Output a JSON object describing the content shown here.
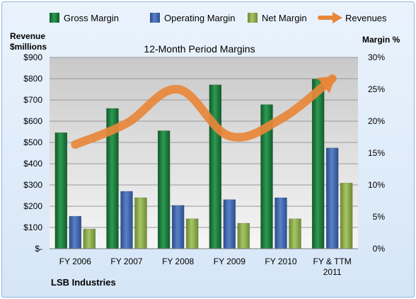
{
  "chart_data": {
    "type": "bar",
    "title": "12-Month Period Margins",
    "company": "LSB Industries",
    "left_axis": {
      "label_line1": "Revenue",
      "label_line2": "$millions",
      "ylim": [
        0,
        900
      ],
      "ticks": [
        "$-",
        "$100",
        "$200",
        "$300",
        "$400",
        "$500",
        "$600",
        "$700",
        "$800",
        "$900"
      ]
    },
    "right_axis": {
      "label": "Margin %",
      "ylim": [
        0,
        30
      ],
      "ticks": [
        "0%",
        "5%",
        "10%",
        "15%",
        "20%",
        "25%",
        "30%"
      ]
    },
    "categories": [
      {
        "line1": "FY 2006",
        "line2": ""
      },
      {
        "line1": "FY 2007",
        "line2": ""
      },
      {
        "line1": "FY 2008",
        "line2": ""
      },
      {
        "line1": "FY 2009",
        "line2": ""
      },
      {
        "line1": "FY 2010",
        "line2": ""
      },
      {
        "line1": "FY & TTM",
        "line2": "2011"
      }
    ],
    "series": [
      {
        "name": "Gross Margin",
        "axis": "right",
        "color": "#1f7a3c",
        "values": [
          18.2,
          22.0,
          18.5,
          25.7,
          22.6,
          26.6
        ]
      },
      {
        "name": "Operating Margin",
        "axis": "right",
        "color": "#3d64a8",
        "values": [
          5.1,
          9.0,
          6.8,
          7.7,
          8.0,
          15.8
        ]
      },
      {
        "name": "Net Margin",
        "axis": "right",
        "color": "#8aa84a",
        "values": [
          3.1,
          8.0,
          4.7,
          4.0,
          4.7,
          10.3
        ]
      }
    ],
    "line_series": {
      "name": "Revenues",
      "axis": "left",
      "color": "#e8873a",
      "values": [
        490,
        590,
        750,
        530,
        610,
        800
      ]
    },
    "grid": true,
    "legend_position": "top"
  }
}
